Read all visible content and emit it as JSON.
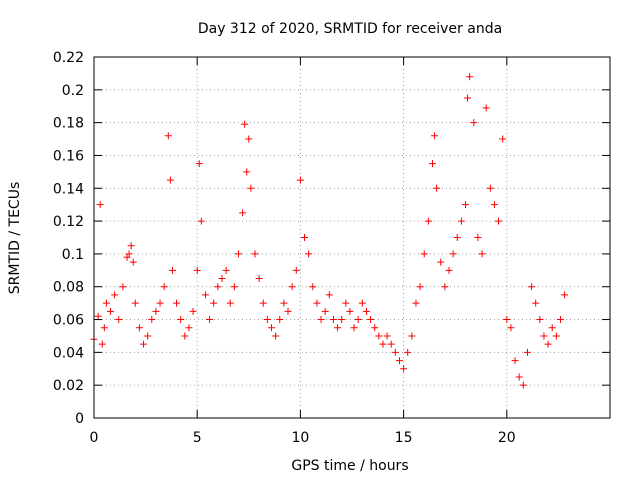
{
  "chart_data": {
    "type": "scatter",
    "title": "Day 312 of 2020, SRMTID for receiver anda",
    "xlabel": "GPS time / hours",
    "ylabel": "SRMTID / TECUs",
    "xlim": [
      0,
      25
    ],
    "ylim": [
      0,
      0.22
    ],
    "x_ticks": [
      0,
      5,
      10,
      15,
      20
    ],
    "x_tick_labels": [
      "0",
      "5",
      "10",
      "15",
      "20"
    ],
    "y_ticks": [
      0,
      0.02,
      0.04,
      0.06,
      0.08,
      0.1,
      0.12,
      0.14,
      0.16,
      0.18,
      0.2,
      0.22
    ],
    "y_tick_labels": [
      "0",
      "0.02",
      "0.04",
      "0.06",
      "0.08",
      "0.1",
      "0.12",
      "0.14",
      "0.16",
      "0.18",
      "0.2",
      "0.22"
    ],
    "grid": true,
    "marker": "+",
    "marker_color": "#ff0000",
    "series": [
      {
        "name": "SRMTID",
        "x": [
          0.0,
          0.2,
          0.3,
          0.4,
          0.5,
          0.6,
          0.8,
          1.0,
          1.2,
          1.4,
          1.6,
          1.7,
          1.8,
          1.9,
          2.0,
          2.2,
          2.4,
          2.6,
          2.8,
          3.0,
          3.2,
          3.4,
          3.6,
          3.7,
          3.8,
          4.0,
          4.2,
          4.4,
          4.6,
          4.8,
          5.0,
          5.1,
          5.2,
          5.4,
          5.6,
          5.8,
          6.0,
          6.2,
          6.4,
          6.6,
          6.8,
          7.0,
          7.2,
          7.3,
          7.4,
          7.5,
          7.6,
          7.8,
          8.0,
          8.2,
          8.4,
          8.6,
          8.8,
          9.0,
          9.2,
          9.4,
          9.6,
          9.8,
          10.0,
          10.2,
          10.4,
          10.6,
          10.8,
          11.0,
          11.2,
          11.4,
          11.6,
          11.8,
          12.0,
          12.2,
          12.4,
          12.6,
          12.8,
          13.0,
          13.2,
          13.4,
          13.6,
          13.8,
          14.0,
          14.2,
          14.4,
          14.6,
          14.8,
          15.0,
          15.2,
          15.4,
          15.6,
          15.8,
          16.0,
          16.2,
          16.4,
          16.5,
          16.6,
          16.8,
          17.0,
          17.2,
          17.4,
          17.6,
          17.8,
          18.0,
          18.1,
          18.2,
          18.4,
          18.6,
          18.8,
          19.0,
          19.2,
          19.4,
          19.6,
          19.8,
          20.0,
          20.2,
          20.4,
          20.6,
          20.8,
          21.0,
          21.2,
          21.4,
          21.6,
          21.8,
          22.0,
          22.2,
          22.4,
          22.6,
          22.8
        ],
        "y": [
          0.048,
          0.062,
          0.13,
          0.045,
          0.055,
          0.07,
          0.065,
          0.075,
          0.06,
          0.08,
          0.098,
          0.1,
          0.105,
          0.095,
          0.07,
          0.055,
          0.045,
          0.05,
          0.06,
          0.065,
          0.07,
          0.08,
          0.172,
          0.145,
          0.09,
          0.07,
          0.06,
          0.05,
          0.055,
          0.065,
          0.09,
          0.155,
          0.12,
          0.075,
          0.06,
          0.07,
          0.08,
          0.085,
          0.09,
          0.07,
          0.08,
          0.1,
          0.125,
          0.179,
          0.15,
          0.17,
          0.14,
          0.1,
          0.085,
          0.07,
          0.06,
          0.055,
          0.05,
          0.06,
          0.07,
          0.065,
          0.08,
          0.09,
          0.145,
          0.11,
          0.1,
          0.08,
          0.07,
          0.06,
          0.065,
          0.075,
          0.06,
          0.055,
          0.06,
          0.07,
          0.065,
          0.055,
          0.06,
          0.07,
          0.065,
          0.06,
          0.055,
          0.05,
          0.045,
          0.05,
          0.045,
          0.04,
          0.035,
          0.03,
          0.04,
          0.05,
          0.07,
          0.08,
          0.1,
          0.12,
          0.155,
          0.172,
          0.14,
          0.095,
          0.08,
          0.09,
          0.1,
          0.11,
          0.12,
          0.13,
          0.195,
          0.208,
          0.18,
          0.11,
          0.1,
          0.189,
          0.14,
          0.13,
          0.12,
          0.17,
          0.06,
          0.055,
          0.035,
          0.025,
          0.02,
          0.04,
          0.08,
          0.07,
          0.06,
          0.05,
          0.045,
          0.055,
          0.05,
          0.06,
          0.075
        ]
      }
    ]
  }
}
